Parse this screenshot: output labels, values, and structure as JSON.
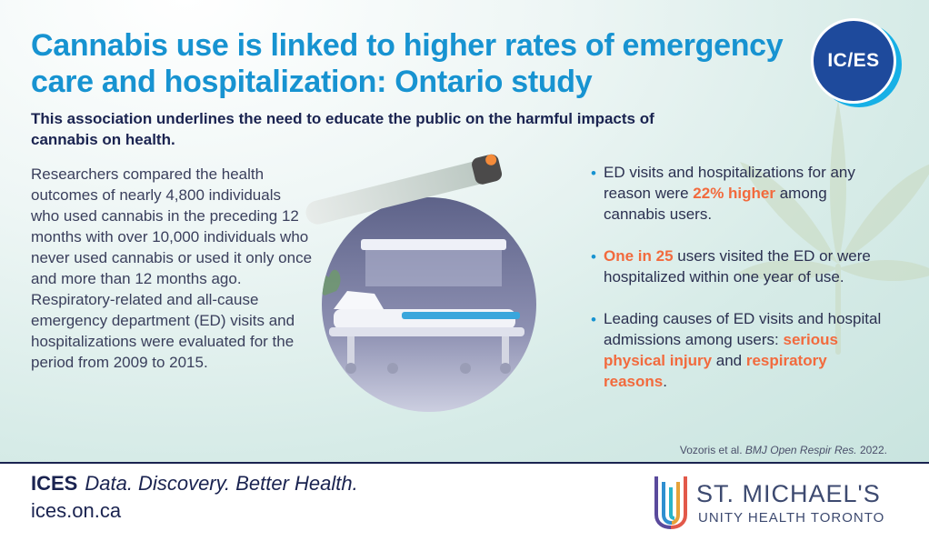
{
  "header": {
    "title": "Cannabis use is linked to higher rates of emergency care and hospitalization: Ontario study",
    "subtitle": "This association underlines the need to educate the public on the harmful impacts of cannabis on health.",
    "logo_text": "IC/ES"
  },
  "main": {
    "body": "Researchers compared the health outcomes of nearly 4,800 individuals who used cannabis in the preceding 12 months with over 10,000 individuals who never used cannabis or used it only once and more than 12 months ago. Respiratory-related and all-cause emergency department (ED) visits and hospitalizations were evaluated for the period from 2009 to 2015."
  },
  "bullets": {
    "b1": {
      "pre": "ED visits and hospitalizations for any reason were ",
      "highlight": "22% higher",
      "post": " among cannabis users."
    },
    "b2": {
      "highlight": "One in 25",
      "post": " users visited the ED or were hospitalized within one year of use."
    },
    "b3": {
      "pre": "Leading causes of ED visits and hospital admissions among users: ",
      "highlight1": "serious physical injury",
      "mid": " and ",
      "highlight2": "respiratory reasons",
      "post": "."
    }
  },
  "citation": {
    "authors": "Vozoris et al. ",
    "journal": "BMJ Open Respir Res.",
    "year": " 2022."
  },
  "footer": {
    "brand": "ICES",
    "tagline": "Data. Discovery. Better Health.",
    "url": "ices.on.ca",
    "partner_name": "ST. MICHAEL'S",
    "partner_sub": "UNITY HEALTH TORONTO"
  },
  "colors": {
    "title_blue": "#1793d1",
    "navy": "#1a2350",
    "highlight_orange": "#f26a3d",
    "logo_blue": "#1e4a9c"
  },
  "icons": [
    "cannabis-leaf-icon",
    "hospital-bed-illustration",
    "joint-illustration",
    "smh-logo-mark"
  ]
}
